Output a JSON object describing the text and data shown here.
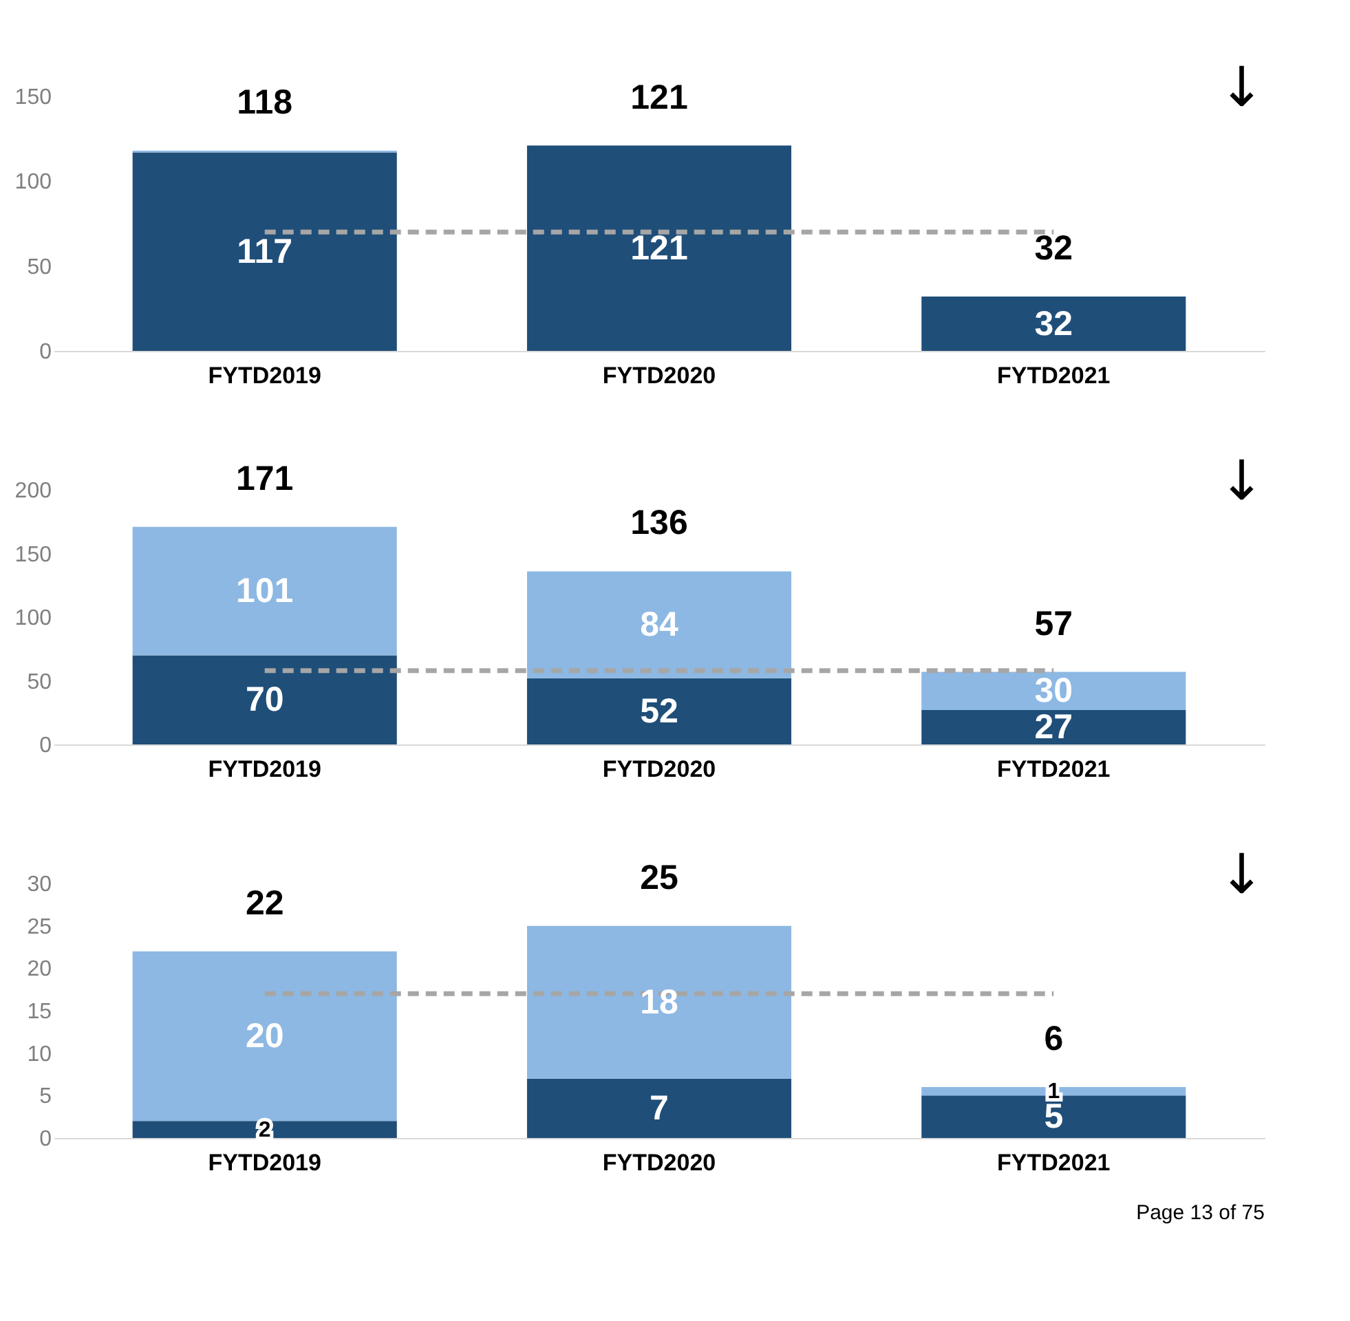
{
  "chart_data": [
    {
      "type": "bar",
      "stacked": true,
      "categories": [
        "FYTD2019",
        "FYTD2020",
        "FYTD2021"
      ],
      "ylim": [
        0,
        150
      ],
      "yticks": [
        0,
        50,
        100,
        150
      ],
      "grid": false,
      "series": [
        {
          "color": "#1f4e79",
          "values": [
            117,
            121,
            32
          ],
          "value_labels": [
            "117",
            "121",
            "32"
          ]
        },
        {
          "color": "#8db8e3",
          "values": [
            1,
            0,
            0
          ],
          "value_labels": [
            null,
            null,
            null
          ]
        }
      ],
      "totals": [
        "118",
        "121",
        "32"
      ],
      "ref_lines": [
        {
          "axis": "y",
          "value": 70,
          "color": "#a6a6a6",
          "line_style": "dashed"
        }
      ],
      "annotations": [
        "↓"
      ]
    },
    {
      "type": "bar",
      "stacked": true,
      "categories": [
        "FYTD2019",
        "FYTD2020",
        "FYTD2021"
      ],
      "ylim": [
        0,
        200
      ],
      "yticks": [
        0,
        50,
        100,
        150,
        200
      ],
      "grid": false,
      "series": [
        {
          "color": "#1f4e79",
          "values": [
            70,
            52,
            27
          ],
          "value_labels": [
            "70",
            "52",
            "27"
          ]
        },
        {
          "color": "#8db8e3",
          "values": [
            101,
            84,
            30
          ],
          "value_labels": [
            "101",
            "84",
            "30"
          ]
        }
      ],
      "totals": [
        "171",
        "136",
        "57"
      ],
      "ref_lines": [
        {
          "axis": "y",
          "value": 58,
          "color": "#a6a6a6",
          "line_style": "dashed"
        }
      ],
      "annotations": [
        "↓"
      ]
    },
    {
      "type": "bar",
      "stacked": true,
      "categories": [
        "FYTD2019",
        "FYTD2020",
        "FYTD2021"
      ],
      "ylim": [
        0,
        30
      ],
      "yticks": [
        0,
        5,
        10,
        15,
        20,
        25,
        30
      ],
      "grid": false,
      "series": [
        {
          "color": "#1f4e79",
          "values": [
            2,
            7,
            5
          ],
          "value_labels": [
            "2",
            "7",
            "5"
          ]
        },
        {
          "color": "#8db8e3",
          "values": [
            20,
            18,
            1
          ],
          "value_labels": [
            "20",
            "18",
            "1"
          ]
        }
      ],
      "totals": [
        "22",
        "25",
        "6"
      ],
      "ref_lines": [
        {
          "axis": "y",
          "value": 17,
          "color": "#a6a6a6",
          "line_style": "dashed"
        }
      ],
      "annotations": [
        "↓",
        "Page 13 of 75"
      ]
    }
  ]
}
